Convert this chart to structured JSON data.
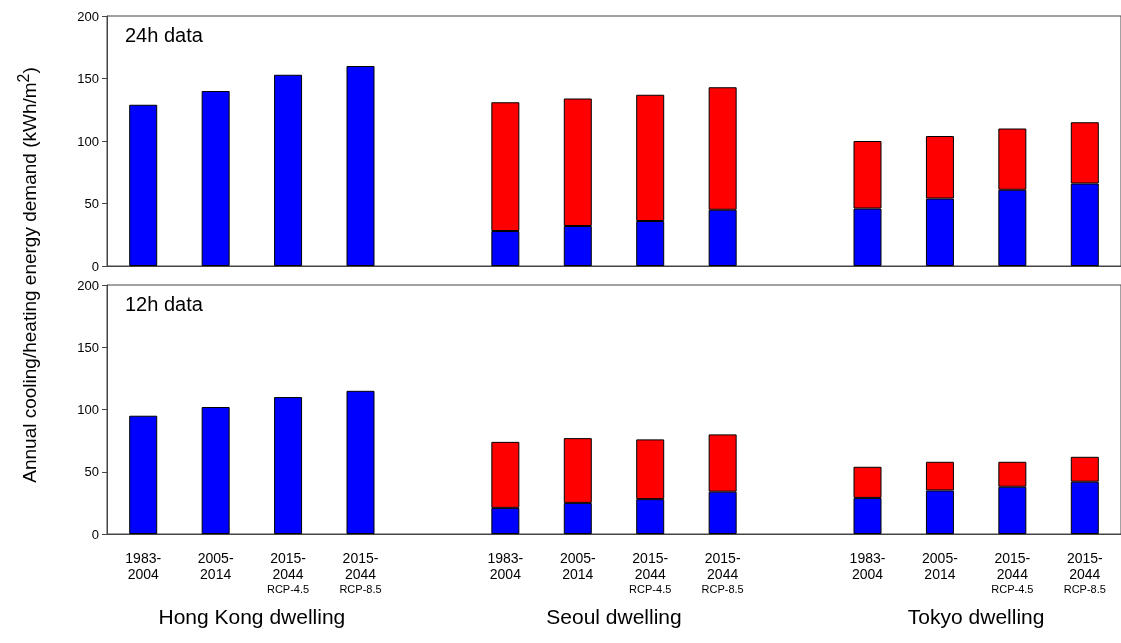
{
  "chart_data": [
    {
      "type": "bar",
      "title": "24h data",
      "ylabel": "Annual cooling/heating energy demand (kWh/m$^{2}$)",
      "stacked": true,
      "tick_labels": "y",
      "grid": false,
      "categories": [
        null,
        null,
        null,
        null,
        null,
        null,
        null,
        null,
        null,
        null,
        null,
        null,
        null,
        null
      ],
      "series": [
        {
          "color": "#0000ff",
          "values": [
            129,
            140,
            153,
            160,
            null,
            28,
            32,
            36,
            45,
            null,
            46,
            54,
            61,
            66
          ]
        },
        {
          "color": "#ff0000",
          "values": [
            null,
            null,
            null,
            null,
            null,
            103,
            102,
            101,
            98,
            null,
            54,
            50,
            49,
            49
          ]
        }
      ],
      "ylim": [
        0,
        200
      ],
      "yticks": [
        0,
        50,
        100,
        150,
        200
      ]
    },
    {
      "type": "bar",
      "title": "12h data",
      "stacked": true,
      "grid": false,
      "annotations": [
        "Hong Kong dwelling",
        "Seoul dwelling",
        "Tokyo dwelling"
      ],
      "categories": [
        "1983-\n2004",
        "2005-\n2014",
        "2015-\n2044\nRCP-4.5",
        "2015-\n2044\nRCP-8.5",
        null,
        "1983-\n2004",
        "2005-\n2014",
        "2015-\n2044\nRCP-4.5",
        "2015-\n2044\nRCP-8.5",
        null,
        "1983-\n2004",
        "2005-\n2014",
        "2015-\n2044\nRCP-4.5",
        "2015-\n2044\nRCP-8.5"
      ],
      "series": [
        {
          "color": "#0000ff",
          "values": [
            95,
            102,
            110,
            115,
            null,
            21,
            25,
            28,
            34,
            null,
            29,
            35,
            38,
            42
          ]
        },
        {
          "color": "#ff0000",
          "values": [
            null,
            null,
            null,
            null,
            null,
            53,
            52,
            48,
            46,
            null,
            25,
            23,
            20,
            20
          ]
        }
      ],
      "ylim": [
        0,
        200
      ],
      "yticks": [
        0,
        50,
        100,
        150,
        200
      ]
    }
  ]
}
